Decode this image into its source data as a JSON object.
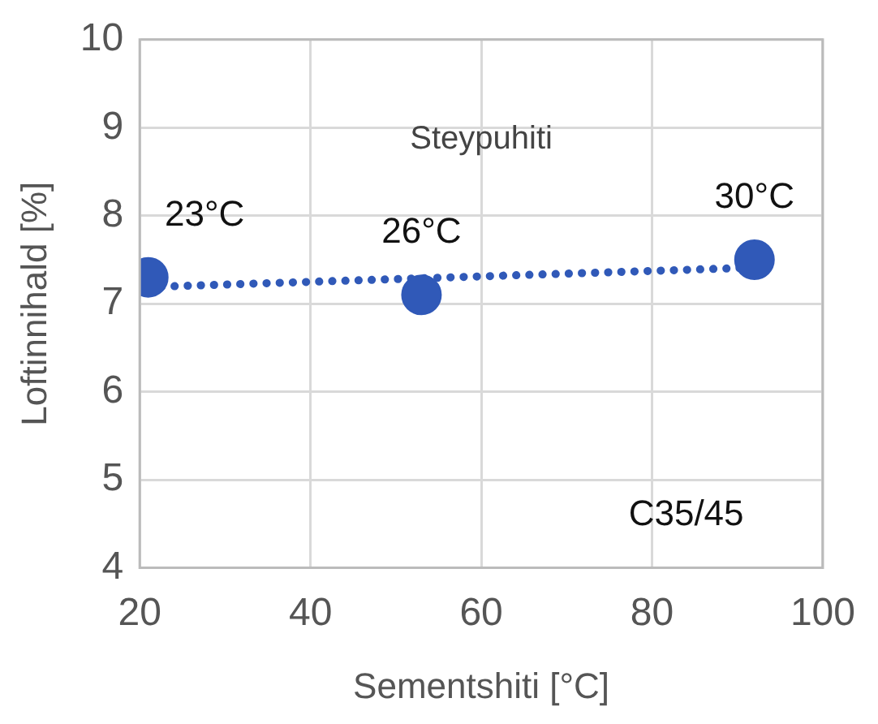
{
  "chart_data": {
    "type": "scatter",
    "xlabel": "Sementshiti [°C]",
    "ylabel": "Loftinnihald [%]",
    "xlim": [
      20,
      100
    ],
    "xticks": [
      20,
      40,
      60,
      80,
      100
    ],
    "ylim": [
      4,
      10
    ],
    "yticks": [
      4,
      5,
      6,
      7,
      8,
      9,
      10
    ],
    "grid": true,
    "legend": false,
    "marker": "circle",
    "series": [
      {
        "color": "#3059b8",
        "x": [
          21,
          53,
          92
        ],
        "values": [
          7.3,
          7.1,
          7.5
        ]
      },
      {
        "type": "line",
        "color": "#3059b8",
        "line_style": "dotted",
        "marker": "none",
        "x": [
          21,
          92
        ],
        "values": [
          7.19,
          7.41
        ]
      }
    ],
    "annotations": [
      "Steypuhiti",
      "C35/45",
      {
        "text": "23°C",
        "x": 21,
        "y": 7.3
      },
      {
        "text": "26°C",
        "x": 53,
        "y": 7.1
      },
      {
        "text": "30°C",
        "x": 92,
        "y": 7.5
      }
    ]
  }
}
